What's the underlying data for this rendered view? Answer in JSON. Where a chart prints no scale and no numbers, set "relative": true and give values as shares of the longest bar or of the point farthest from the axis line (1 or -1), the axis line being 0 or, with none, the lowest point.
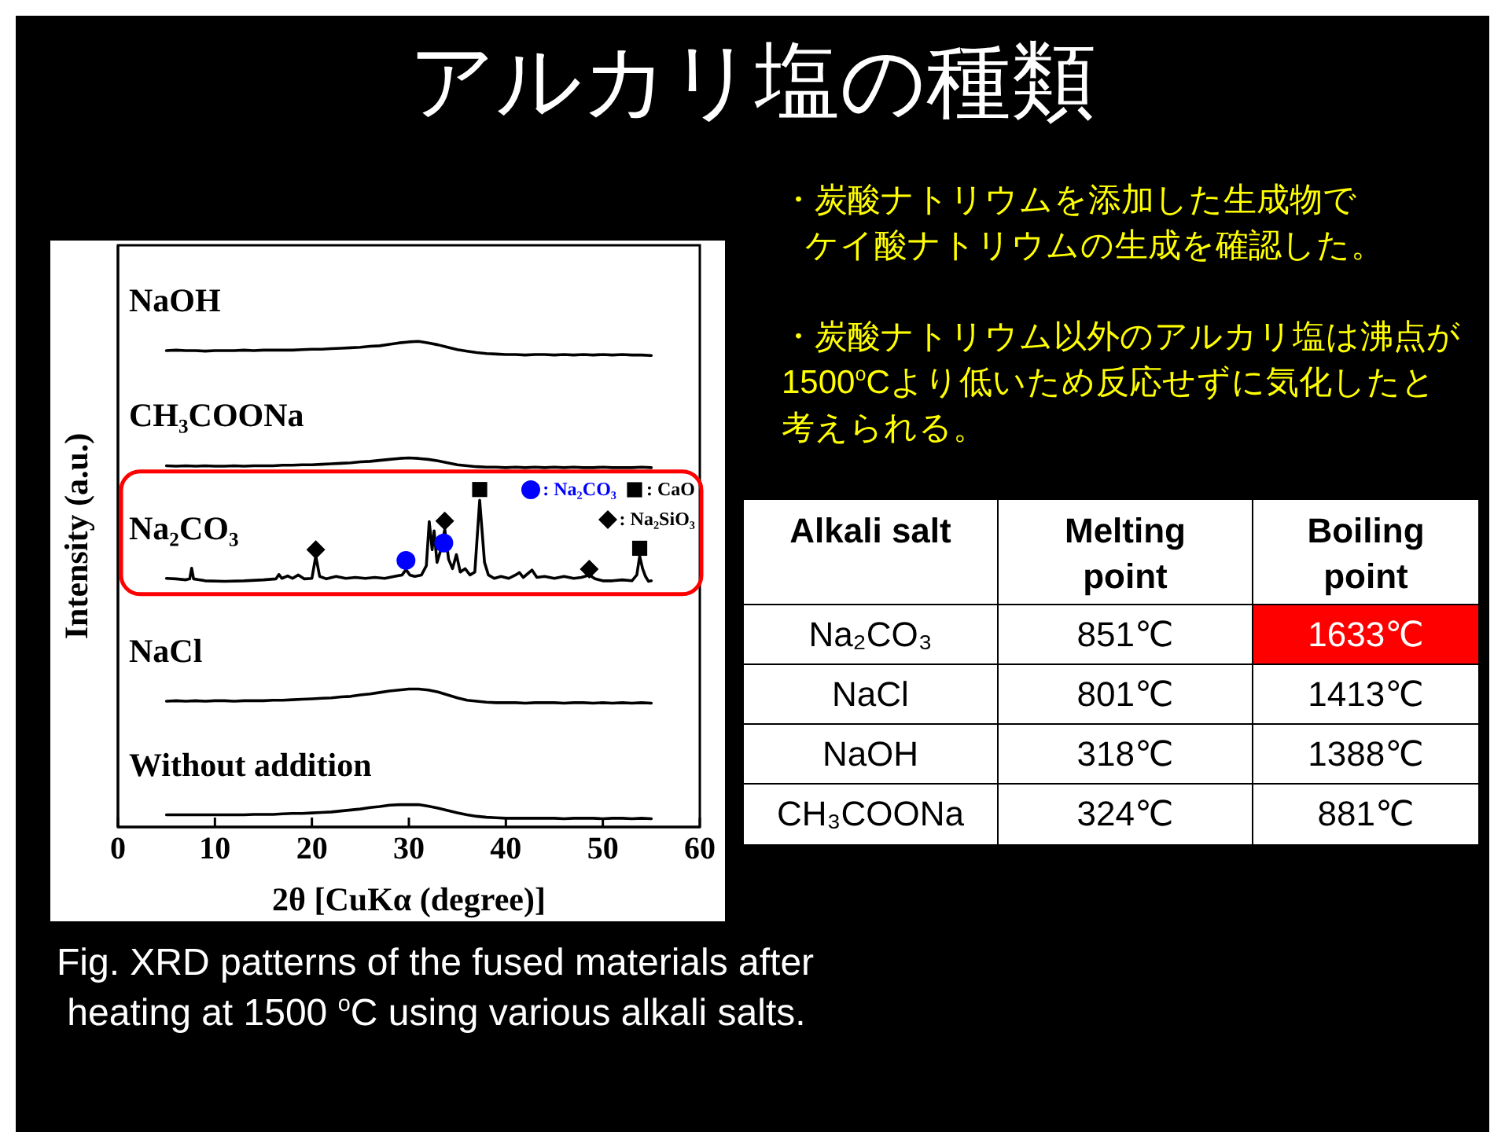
{
  "chart_data": [
    {
      "type": "line",
      "title": "アルカリ塩の種類",
      "xlabel": "2θ [CuKα (degree)]",
      "ylabel": "Intensity (a.u.)",
      "relative": true,
      "xlim": [
        0,
        60
      ],
      "xticks": [
        0,
        10,
        20,
        30,
        40,
        50,
        60
      ],
      "legend": "right",
      "line_style": "solid",
      "x": [
        5,
        6,
        7,
        8,
        9,
        10,
        11,
        12,
        13,
        14,
        15,
        16,
        17,
        18,
        19,
        20,
        21,
        22,
        23,
        24,
        25,
        26,
        27,
        28,
        29,
        30,
        31,
        32,
        33,
        34,
        35,
        36,
        37,
        38,
        39,
        40,
        41,
        42,
        43,
        44,
        45,
        46,
        47,
        48,
        49,
        50,
        51,
        52,
        53,
        54,
        55
      ],
      "series": [
        {
          "name": "NaOH",
          "color": "#000000",
          "values": [
            0.981,
            0.982,
            0.981,
            0.981,
            0.98,
            0.981,
            0.981,
            0.981,
            0.982,
            0.981,
            0.982,
            0.982,
            0.982,
            0.982,
            0.983,
            0.984,
            0.984,
            0.985,
            0.986,
            0.987,
            0.988,
            0.99,
            0.991,
            0.994,
            0.997,
            0.999,
            1,
            0.997,
            0.993,
            0.988,
            0.983,
            0.98,
            0.977,
            0.975,
            0.974,
            0.973,
            0.973,
            0.972,
            0.973,
            0.973,
            0.972,
            0.973,
            0.972,
            0.973,
            0.972,
            0.973,
            0.972,
            0.973,
            0.972,
            0.972,
            0.971
          ]
        },
        {
          "name": "CH₃COONa",
          "color": "#000000",
          "values": [
            0.744,
            0.743,
            0.744,
            0.743,
            0.744,
            0.743,
            0.743,
            0.744,
            0.743,
            0.744,
            0.744,
            0.744,
            0.745,
            0.745,
            0.746,
            0.746,
            0.747,
            0.748,
            0.749,
            0.75,
            0.752,
            0.753,
            0.755,
            0.757,
            0.759,
            0.76,
            0.759,
            0.757,
            0.754,
            0.75,
            0.746,
            0.744,
            0.742,
            0.741,
            0.741,
            0.74,
            0.741,
            0.74,
            0.741,
            0.74,
            0.741,
            0.74,
            0.741,
            0.74,
            0.74,
            0.741,
            0.74,
            0.74,
            0.74,
            0.741,
            0.74
          ]
        },
        {
          "name": "Na₂CO₃",
          "color": "#000000",
          "x": [
            5,
            6,
            7,
            7.4,
            7.6,
            7.8,
            9,
            11,
            13,
            15,
            16.3,
            16.6,
            16.9,
            17.5,
            18,
            18.6,
            19.2,
            20,
            20.4,
            20.8,
            21.5,
            22.5,
            23.5,
            24.5,
            25.5,
            26.5,
            27.5,
            28.5,
            29.3,
            29.7,
            30.1,
            30.6,
            31.3,
            31.8,
            32.1,
            32.4,
            32.6,
            32.9,
            33.3,
            33.7,
            34.1,
            34.5,
            34.9,
            35.3,
            35.8,
            36.3,
            36.8,
            37.3,
            37.8,
            38.2,
            38.8,
            39.5,
            40.3,
            41,
            41.4,
            41.8,
            42.7,
            43.2,
            44,
            45,
            46,
            47,
            47.8,
            48.6,
            49.2,
            50,
            51,
            52,
            53,
            53.5,
            53.8,
            54.1,
            54.4,
            54.7,
            55
          ],
          "values": [
            0.512,
            0.511,
            0.509,
            0.511,
            0.533,
            0.511,
            0.507,
            0.506,
            0.507,
            0.509,
            0.511,
            0.52,
            0.512,
            0.517,
            0.512,
            0.519,
            0.511,
            0.512,
            0.558,
            0.516,
            0.511,
            0.516,
            0.512,
            0.514,
            0.512,
            0.514,
            0.512,
            0.516,
            0.519,
            0.53,
            0.519,
            0.516,
            0.519,
            0.538,
            0.629,
            0.571,
            0.61,
            0.545,
            0.571,
            0.613,
            0.551,
            0.532,
            0.561,
            0.525,
            0.532,
            0.519,
            0.525,
            0.673,
            0.545,
            0.519,
            0.512,
            0.516,
            0.512,
            0.519,
            0.524,
            0.514,
            0.529,
            0.514,
            0.516,
            0.512,
            0.516,
            0.512,
            0.514,
            0.519,
            0.511,
            0.507,
            0.507,
            0.509,
            0.507,
            0.519,
            0.558,
            0.532,
            0.516,
            0.506,
            0.507
          ]
        },
        {
          "name": "NaCl",
          "color": "#000000",
          "values": [
            0.259,
            0.26,
            0.259,
            0.26,
            0.259,
            0.26,
            0.26,
            0.259,
            0.26,
            0.26,
            0.26,
            0.261,
            0.261,
            0.262,
            0.263,
            0.264,
            0.265,
            0.266,
            0.268,
            0.269,
            0.272,
            0.274,
            0.277,
            0.28,
            0.282,
            0.284,
            0.284,
            0.282,
            0.278,
            0.272,
            0.266,
            0.261,
            0.259,
            0.257,
            0.256,
            0.256,
            0.256,
            0.255,
            0.256,
            0.256,
            0.256,
            0.255,
            0.256,
            0.256,
            0.255,
            0.256,
            0.255,
            0.256,
            0.255,
            0.256,
            0.255
          ]
        },
        {
          "name": "Without addition",
          "color": "#000000",
          "values": [
            0.025,
            0.025,
            0.025,
            0.025,
            0.025,
            0.025,
            0.025,
            0.025,
            0.025,
            0.026,
            0.026,
            0.026,
            0.027,
            0.028,
            0.028,
            0.029,
            0.03,
            0.031,
            0.033,
            0.035,
            0.037,
            0.04,
            0.042,
            0.045,
            0.046,
            0.046,
            0.046,
            0.043,
            0.039,
            0.034,
            0.029,
            0.025,
            0.022,
            0.02,
            0.019,
            0.018,
            0.018,
            0.018,
            0.018,
            0.018,
            0.018,
            0.017,
            0.018,
            0.018,
            0.018,
            0.017,
            0.018,
            0.018,
            0.017,
            0.018,
            0.017
          ]
        },
        {
          "name": ": Na₂CO₃",
          "type": "scatter",
          "marker": "circle",
          "color": "#0000ff",
          "x": [
            29.7,
            33.6
          ],
          "values": [
            0.549,
            0.585
          ]
        },
        {
          "name": ": CaO",
          "type": "scatter",
          "marker": "square",
          "color": "#000000",
          "x": [
            37.3,
            53.8
          ],
          "values": [
            0.695,
            0.574
          ]
        },
        {
          "name": ": Na₂SiO₃",
          "type": "scatter",
          "marker": "diamond",
          "color": "#000000",
          "x": [
            20.4,
            33.7,
            48.6
          ],
          "values": [
            0.571,
            0.63,
            0.531
          ]
        }
      ],
      "annotations": [
        "Fig. XRD patterns of the fused materials after\n heating at 1500 $^{o}$C using various alkali salts."
      ]
    },
    {
      "type": "other",
      "ylabel": "Alkali salt",
      "categories": [
        "Na₂CO₃",
        "NaCl",
        "NaOH",
        "CH₃COONa"
      ],
      "series": [
        {
          "name": "Melting point",
          "color": "#ffffff",
          "values": [
            851,
            801,
            318,
            324
          ],
          "value_labels": [
            "851℃",
            "801℃",
            "318℃",
            "324℃"
          ]
        },
        {
          "name": "Boiling point",
          "colors": [
            "#ff0000",
            "#ffffff",
            "#ffffff",
            "#ffffff"
          ],
          "values": [
            1633,
            1413,
            1388,
            881
          ],
          "value_labels": [
            "1633℃",
            "1413℃",
            "1388℃",
            "881℃"
          ]
        }
      ],
      "annotations": [
        "・炭酸ナトリウムを添加した生成物でケイ酸ナトリウムの生成を確認した。",
        "・炭酸ナトリウム以外のアルカリ塩は沸点が1500$^{o}$Cより低いため反応せずに気化したと考えられる。"
      ]
    }
  ]
}
